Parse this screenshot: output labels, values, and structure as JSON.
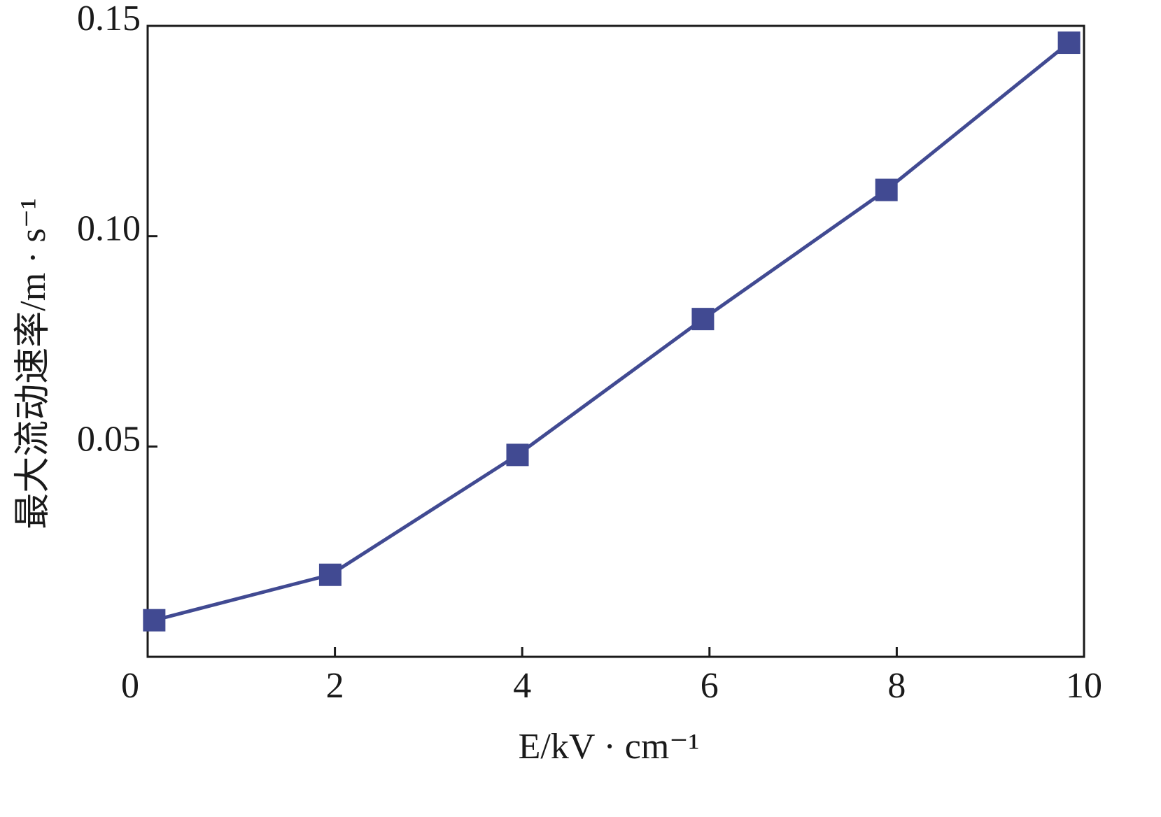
{
  "chart_data": {
    "type": "line",
    "x_label": "E/kV · cm⁻¹",
    "y_label": "最大流动速率/m · s⁻¹",
    "x": [
      0.07,
      1.95,
      3.95,
      5.93,
      7.89,
      9.84
    ],
    "series": [
      {
        "color": "#414a92",
        "marker": "square",
        "values": [
          0.0087,
          0.0195,
          0.048,
          0.0803,
          0.111,
          0.146
        ]
      }
    ],
    "xlim": [
      0,
      10
    ],
    "ylim": [
      0,
      0.15
    ],
    "xticks": [
      0,
      2,
      4,
      6,
      8,
      10
    ],
    "yticks": [
      0.05,
      {
        "value": 0.1,
        "label": "0.10"
      },
      0.15
    ],
    "grid": false
  }
}
